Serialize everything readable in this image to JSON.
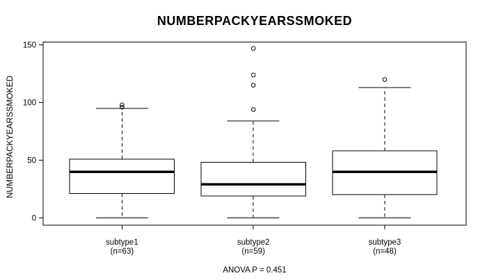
{
  "title": "NUMBERPACKYEARSSMOKED",
  "y_axis": {
    "label": "NUMBERPACKYEARSSMOKED",
    "ticks": [
      0,
      50,
      100,
      150
    ],
    "range": [
      0,
      150
    ]
  },
  "footer": {
    "anova_label": "ANOVA P = 0.451"
  },
  "colors": {
    "line": "#000000",
    "median": "#000000",
    "background": "#ffffff",
    "box_fill": "#ffffff"
  },
  "chart_data": {
    "type": "boxplot",
    "title": "NUMBERPACKYEARSSMOKED",
    "xlabel": "",
    "ylabel": "NUMBERPACKYEARSSMOKED",
    "ylim": [
      0,
      150
    ],
    "yticks": [
      0,
      50,
      100,
      150
    ],
    "grid": false,
    "annotation": "ANOVA P = 0.451",
    "groups": [
      {
        "label": "subtype1",
        "n_label": "(n=63)",
        "n": 63,
        "whisker_low": 0,
        "q1": 21,
        "median": 40,
        "q3": 51,
        "whisker_high": 95,
        "outliers": [
          96,
          98
        ]
      },
      {
        "label": "subtype2",
        "n_label": "(n=59)",
        "n": 59,
        "whisker_low": 0,
        "q1": 19,
        "median": 29,
        "q3": 48,
        "whisker_high": 84,
        "outliers": [
          94,
          115,
          124,
          147
        ]
      },
      {
        "label": "subtype3",
        "n_label": "(n=48)",
        "n": 48,
        "whisker_low": 0,
        "q1": 20,
        "median": 40,
        "q3": 58,
        "whisker_high": 113,
        "outliers": [
          120
        ]
      }
    ]
  }
}
